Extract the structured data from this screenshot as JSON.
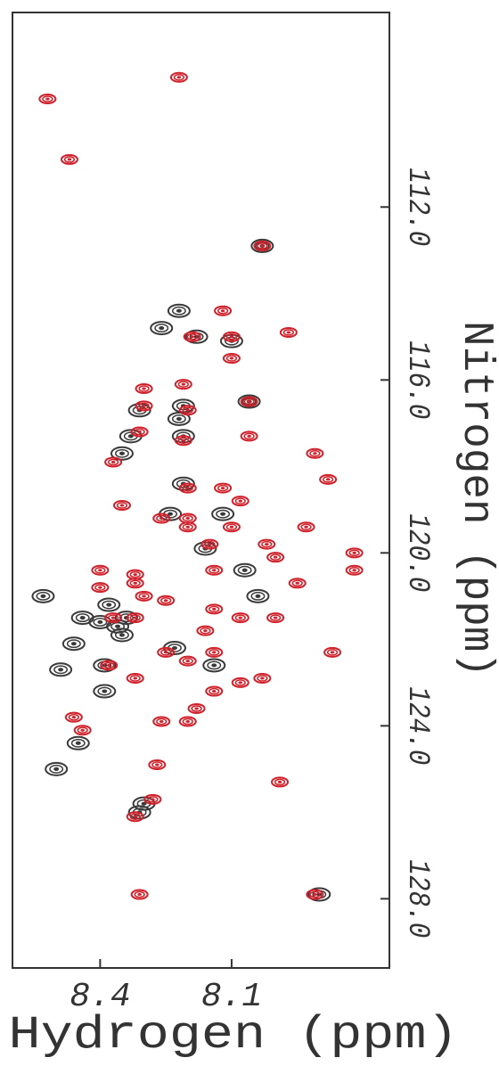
{
  "chart_data": {
    "type": "scatter",
    "xlabel": "Hydrogen (ppm)",
    "ylabel": "Nitrogen (ppm)",
    "xlim": [
      8.6,
      7.74
    ],
    "ylim": [
      107.5,
      129.6
    ],
    "xticks": [
      8.4,
      8.1
    ],
    "yticks": [
      {
        "value": 112,
        "label": "112.0"
      },
      {
        "value": 116,
        "label": "116.0"
      },
      {
        "value": 120,
        "label": "120.0"
      },
      {
        "value": 124,
        "label": "124.0"
      },
      {
        "value": 128,
        "label": "128.0"
      }
    ],
    "series": [
      {
        "color": "#3a3a3a",
        "x": [
          8.22,
          8.26,
          8.18,
          8.1,
          8.03,
          8.21,
          8.06,
          8.31,
          8.33,
          8.22,
          8.21,
          8.35,
          8.21,
          8.24,
          8.12,
          8.16,
          8.07,
          8.04,
          8.53,
          8.38,
          8.44,
          8.4,
          8.34,
          8.46,
          8.36,
          8.35,
          8.23,
          8.49,
          8.39,
          8.14,
          8.39,
          8.45,
          8.5,
          8.31,
          8.3,
          7.9
        ],
        "values": [
          114.4,
          114.8,
          115.0,
          115.1,
          112.9,
          116.6,
          116.5,
          116.7,
          117.3,
          116.9,
          117.3,
          117.7,
          118.4,
          119.1,
          119.1,
          119.9,
          120.4,
          121.0,
          121.0,
          121.2,
          121.5,
          121.6,
          121.5,
          122.1,
          121.7,
          121.9,
          122.2,
          122.7,
          122.6,
          122.6,
          123.2,
          124.4,
          125.0,
          126.0,
          125.8,
          127.9
        ]
      },
      {
        "color": "#d0202a",
        "x": [
          8.52,
          8.22,
          8.47,
          8.03,
          8.12,
          7.97,
          8.19,
          8.1,
          8.1,
          8.3,
          8.21,
          8.06,
          8.3,
          8.06,
          8.2,
          8.21,
          8.31,
          7.91,
          7.88,
          8.37,
          8.2,
          8.12,
          8.08,
          8.35,
          8.2,
          8.26,
          8.15,
          8.14,
          8.2,
          8.1,
          8.02,
          7.93,
          8.0,
          7.82,
          7.82,
          7.95,
          8.4,
          8.32,
          8.32,
          8.4,
          8.3,
          8.37,
          8.32,
          8.25,
          8.14,
          8.08,
          8.16,
          8.0,
          8.14,
          7.87,
          8.25,
          8.2,
          8.38,
          8.32,
          8.03,
          8.08,
          8.14,
          8.18,
          8.46,
          8.44,
          8.26,
          8.2,
          8.27,
          7.99,
          8.28,
          8.32,
          8.31,
          7.91
        ],
        "values": [
          109.5,
          109.0,
          110.9,
          112.9,
          114.4,
          114.9,
          115.0,
          115.0,
          115.5,
          116.2,
          116.1,
          116.5,
          116.6,
          117.3,
          116.7,
          117.4,
          117.2,
          117.7,
          118.3,
          117.9,
          118.5,
          118.5,
          118.8,
          118.9,
          119.2,
          119.2,
          119.8,
          120.4,
          119.4,
          119.4,
          119.8,
          119.4,
          120.1,
          120.0,
          120.4,
          120.7,
          120.4,
          120.5,
          120.7,
          120.8,
          121.0,
          121.5,
          121.5,
          121.1,
          121.3,
          121.5,
          121.8,
          121.5,
          122.3,
          122.3,
          122.3,
          122.5,
          122.6,
          122.9,
          122.9,
          123.0,
          123.2,
          123.6,
          123.8,
          124.1,
          123.9,
          123.9,
          124.9,
          125.3,
          125.7,
          126.1,
          127.9,
          127.9
        ]
      }
    ]
  }
}
